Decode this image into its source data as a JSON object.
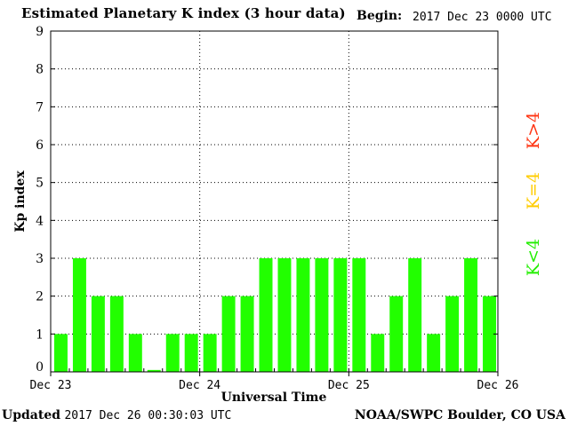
{
  "header": {
    "title": "Estimated Planetary K index (3 hour data)",
    "begin_label": "Begin:",
    "begin_date": "2017 Dec 23 0000 UTC"
  },
  "footer": {
    "updated_label": "Updated",
    "updated_date": "2017 Dec 26 00:30:03 UTC",
    "credit": "NOAA/SWPC Boulder, CO USA"
  },
  "colors": {
    "bar": "#22ff00",
    "k_low": "#22ee00",
    "k_mid": "#ffcc00",
    "k_high": "#ff3311",
    "grid": "#000000"
  },
  "chart_data": {
    "type": "bar",
    "title": "Estimated Planetary K index (3 hour data)",
    "xlabel": "Universal Time",
    "ylabel": "Kp index",
    "ylim": [
      0,
      9
    ],
    "yticks": [
      "0",
      "1",
      "2",
      "3",
      "4",
      "5",
      "6",
      "7",
      "8",
      "9"
    ],
    "day_labels": [
      "Dec 23",
      "Dec 24",
      "Dec 25",
      "Dec 26"
    ],
    "interval_hours": 3,
    "grid": true,
    "values": [
      1,
      3,
      2,
      2,
      1,
      0.05,
      1,
      1,
      1,
      2,
      2,
      3,
      3,
      3,
      3,
      3,
      3,
      1,
      2,
      3,
      1,
      2,
      3,
      2
    ],
    "legend": [
      {
        "label": "K<4",
        "color": "#22ee00"
      },
      {
        "label": "K=4",
        "color": "#ffcc00"
      },
      {
        "label": "K>4",
        "color": "#ff3311"
      }
    ]
  }
}
